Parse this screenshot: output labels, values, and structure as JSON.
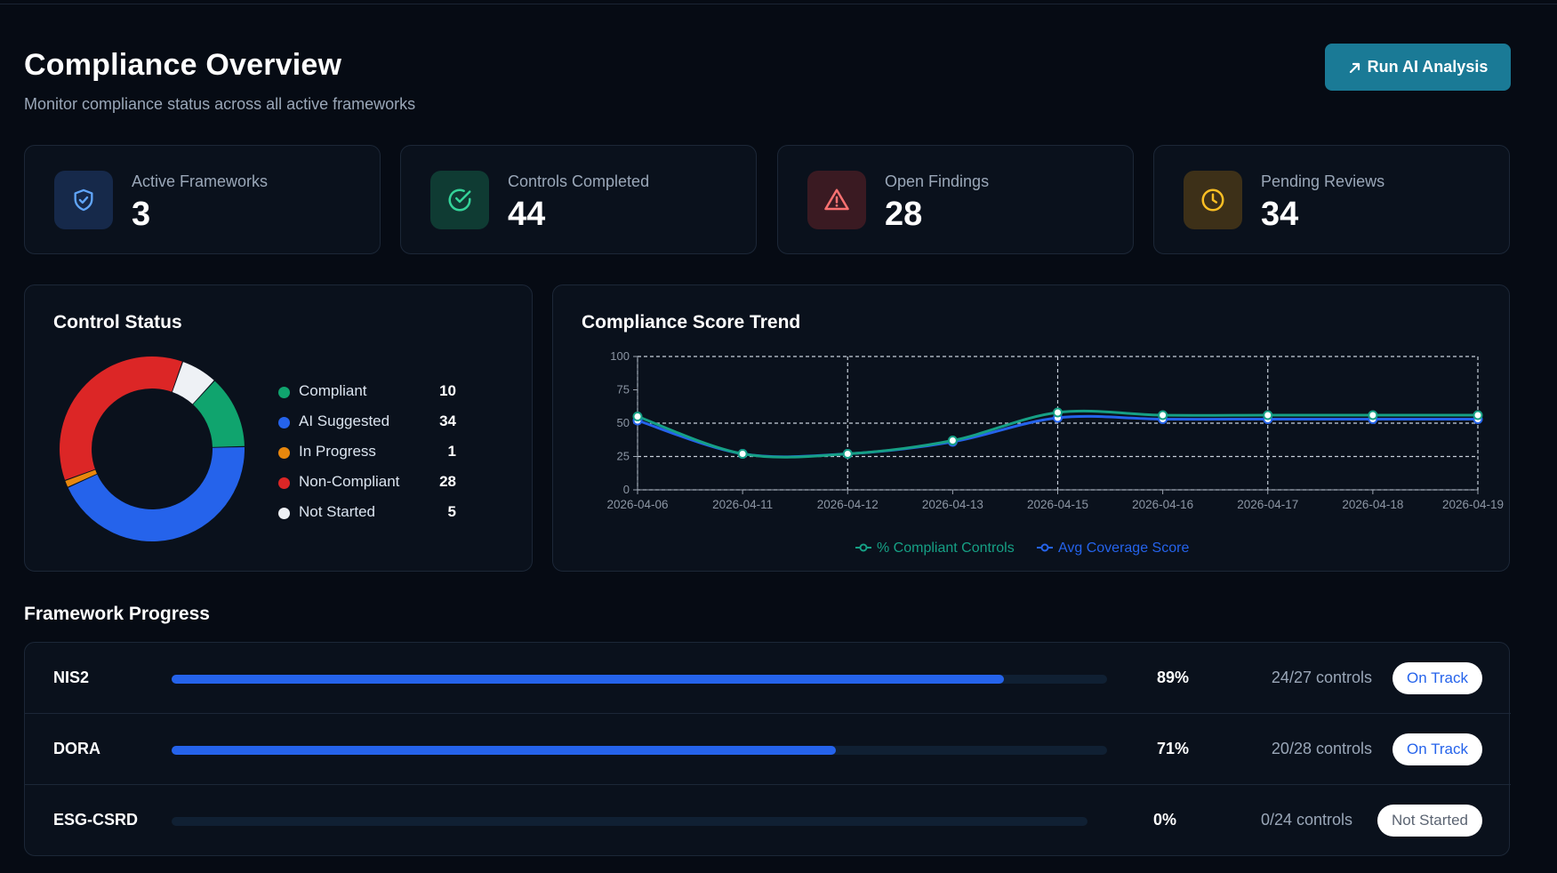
{
  "header": {
    "title": "Compliance Overview",
    "subtitle": "Monitor compliance status across all active frameworks",
    "run_ai_label": "Run AI Analysis",
    "run_ai_icon": "trend-arrow-icon"
  },
  "stats": [
    {
      "label": "Active Frameworks",
      "value": "3",
      "icon": "shield-check-icon",
      "color": "#60a5fa",
      "bg": "#16294a"
    },
    {
      "label": "Controls Completed",
      "value": "44",
      "icon": "circle-check-icon",
      "color": "#34d399",
      "bg": "#0f3b33"
    },
    {
      "label": "Open Findings",
      "value": "28",
      "icon": "warning-triangle-icon",
      "color": "#f87171",
      "bg": "#3a1a22"
    },
    {
      "label": "Pending Reviews",
      "value": "34",
      "icon": "clock-icon",
      "color": "#fbbf24",
      "bg": "#3d3018"
    }
  ],
  "control_status": {
    "title": "Control Status",
    "items": [
      {
        "label": "Compliant",
        "count": "10",
        "value": 10,
        "color": "#10a46e"
      },
      {
        "label": "AI Suggested",
        "count": "34",
        "value": 34,
        "color": "#2563eb"
      },
      {
        "label": "In Progress",
        "count": "1",
        "value": 1,
        "color": "#e8870d"
      },
      {
        "label": "Non-Compliant",
        "count": "28",
        "value": 28,
        "color": "#dc2626"
      },
      {
        "label": "Not Started",
        "count": "5",
        "value": 5,
        "color": "#eef1f5"
      }
    ]
  },
  "trend": {
    "title": "Compliance Score Trend"
  },
  "chart_data": {
    "type": "line",
    "title": "Compliance Score Trend",
    "x": [
      "2026-04-06",
      "2026-04-11",
      "2026-04-12",
      "2026-04-13",
      "2026-04-15",
      "2026-04-16",
      "2026-04-17",
      "2026-04-18",
      "2026-04-19"
    ],
    "series": [
      {
        "name": "% Compliant Controls",
        "color": "#16a085",
        "values": [
          55,
          27,
          27,
          37,
          58,
          56,
          56,
          56,
          56
        ]
      },
      {
        "name": "Avg Coverage Score",
        "color": "#2563eb",
        "values": [
          52,
          27,
          27,
          36,
          54,
          53,
          53,
          53,
          53
        ]
      }
    ],
    "yticks": [
      "0",
      "25",
      "50",
      "75",
      "100"
    ],
    "ylim": [
      0,
      100
    ],
    "grid": true,
    "legend": "bottom-center"
  },
  "framework_progress": {
    "title": "Framework Progress",
    "rows": [
      {
        "name": "NIS2",
        "percent_text": "89%",
        "progress": 89,
        "controls": "24/27 controls",
        "status": "On Track",
        "status_color": "#2563eb"
      },
      {
        "name": "DORA",
        "percent_text": "71%",
        "progress": 71,
        "controls": "20/28 controls",
        "status": "On Track",
        "status_color": "#2563eb"
      },
      {
        "name": "ESG-CSRD",
        "percent_text": "0%",
        "progress": 0,
        "controls": "0/24 controls",
        "status": "Not Started",
        "status_color": "#5b6472"
      }
    ]
  }
}
